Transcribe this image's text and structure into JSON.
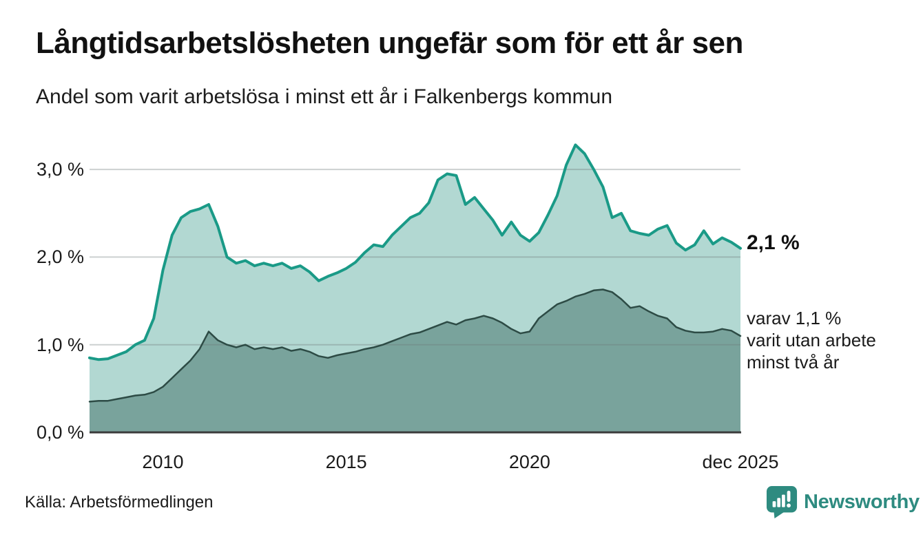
{
  "page": {
    "brand": "Newsworthy"
  },
  "colors": {
    "accent_teal": "#1a9a87",
    "fill_light": "#b2d8d2",
    "fill_dark": "#79a39c",
    "stroke_dark": "#2d4b45",
    "brand_teal": "#2e8b80",
    "axis_line": "#3b3b3b"
  },
  "chart_data": {
    "type": "area",
    "title": "Långtidsarbetslösheten ungefär som för ett år sen",
    "subtitle": "Andel som varit arbetslösa i minst ett år i Falkenbergs kommun",
    "source": "Källa: Arbetsförmedlingen",
    "x_unit": "year",
    "sampling": "quarterly values estimated from the plotted monthly curves",
    "x_start": 2008.0,
    "x_step": 0.25,
    "x_domain": [
      2008.0,
      2025.75
    ],
    "xticks": [
      2010,
      2015,
      2020,
      2025.75
    ],
    "xtick_labels": [
      "2010",
      "2015",
      "2020",
      "dec 2025"
    ],
    "yticks": [
      0,
      1,
      2,
      3
    ],
    "ytick_labels": [
      "0,0 %",
      "1,0 %",
      "2,0 %",
      "3,0 %"
    ],
    "ylim": [
      0,
      3.45
    ],
    "grid": "horizontal",
    "grid_color": "rgba(110,120,120,0.35)",
    "legend_position": "end-of-line annotations",
    "end_labels": {
      "total": "2,1 %",
      "secondary": [
        "varav 1,1 %",
        "varit utan arbete",
        "minst två år"
      ]
    },
    "series": [
      {
        "name": "Andel arbetslösa minst ett år",
        "color": "#1a9a87",
        "fill": "#b2d8d2",
        "stroke_width": 4,
        "end_value_label": "2,1 %",
        "values": [
          0.85,
          0.83,
          0.84,
          0.88,
          0.92,
          1.0,
          1.05,
          1.3,
          1.85,
          2.25,
          2.45,
          2.52,
          2.55,
          2.6,
          2.35,
          2.0,
          1.93,
          1.96,
          1.9,
          1.93,
          1.9,
          1.93,
          1.87,
          1.9,
          1.83,
          1.73,
          1.78,
          1.82,
          1.87,
          1.94,
          2.05,
          2.14,
          2.12,
          2.25,
          2.35,
          2.45,
          2.5,
          2.62,
          2.88,
          2.95,
          2.93,
          2.6,
          2.68,
          2.55,
          2.42,
          2.25,
          2.4,
          2.25,
          2.18,
          2.28,
          2.48,
          2.7,
          3.05,
          3.28,
          3.18,
          3.0,
          2.8,
          2.45,
          2.5,
          2.3,
          2.27,
          2.25,
          2.32,
          2.36,
          2.16,
          2.08,
          2.14,
          2.3,
          2.15,
          2.22,
          2.17,
          2.1
        ]
      },
      {
        "name": "varav utan arbete minst två år",
        "color": "#2d4b45",
        "fill": "#79a39c",
        "stroke_width": 2.5,
        "end_value_label": "1,1 %",
        "values": [
          0.35,
          0.36,
          0.36,
          0.38,
          0.4,
          0.42,
          0.43,
          0.46,
          0.52,
          0.62,
          0.72,
          0.82,
          0.95,
          1.15,
          1.05,
          1.0,
          0.97,
          1.0,
          0.95,
          0.97,
          0.95,
          0.97,
          0.93,
          0.95,
          0.92,
          0.87,
          0.85,
          0.88,
          0.9,
          0.92,
          0.95,
          0.97,
          1.0,
          1.04,
          1.08,
          1.12,
          1.14,
          1.18,
          1.22,
          1.26,
          1.23,
          1.28,
          1.3,
          1.33,
          1.3,
          1.25,
          1.18,
          1.13,
          1.15,
          1.3,
          1.38,
          1.46,
          1.5,
          1.55,
          1.58,
          1.62,
          1.63,
          1.6,
          1.52,
          1.42,
          1.44,
          1.38,
          1.33,
          1.3,
          1.2,
          1.16,
          1.14,
          1.14,
          1.15,
          1.18,
          1.16,
          1.1
        ]
      }
    ]
  }
}
